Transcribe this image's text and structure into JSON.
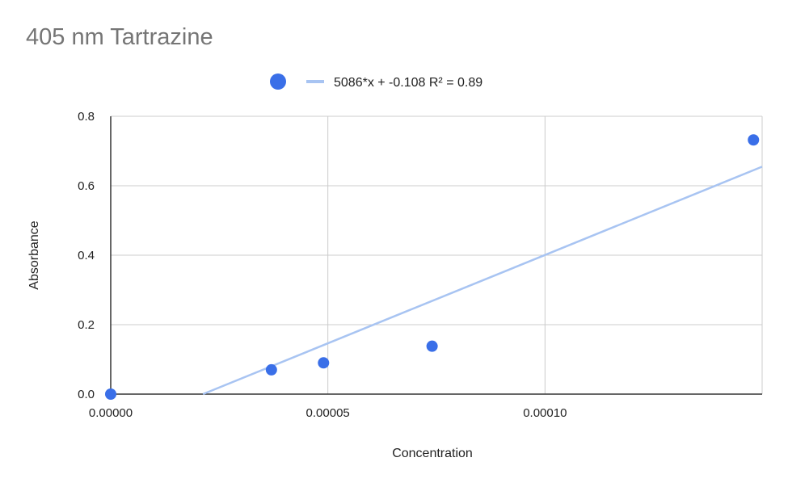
{
  "chart_data": {
    "type": "scatter",
    "title": "405 nm Tartrazine",
    "xlabel": "Concentration",
    "ylabel": "Absorbance",
    "xlim": [
      0,
      0.00015
    ],
    "ylim": [
      0,
      0.8
    ],
    "x_ticks": [
      0,
      5e-05,
      0.0001
    ],
    "x_tick_labels": [
      "0.00000",
      "0.00005",
      "0.00010"
    ],
    "y_ticks": [
      0,
      0.2,
      0.4,
      0.6,
      0.8
    ],
    "y_tick_labels": [
      "0.0",
      "0.2",
      "0.4",
      "0.6",
      "0.8"
    ],
    "grid": true,
    "legend_position": "top",
    "points": [
      {
        "x": 0,
        "y": 0
      },
      {
        "x": 3.7e-05,
        "y": 0.07
      },
      {
        "x": 4.9e-05,
        "y": 0.09
      },
      {
        "x": 7.4e-05,
        "y": 0.138
      },
      {
        "x": 0.000148,
        "y": 0.732
      }
    ],
    "trendline": {
      "slope": 5086,
      "intercept": -0.108,
      "label": "5086*x + -0.108 R² = 0.89"
    },
    "colors": {
      "points": "#3a6fe8",
      "trendline": "#a8c4f2",
      "grid": "#cccccc",
      "title": "#757575"
    }
  }
}
